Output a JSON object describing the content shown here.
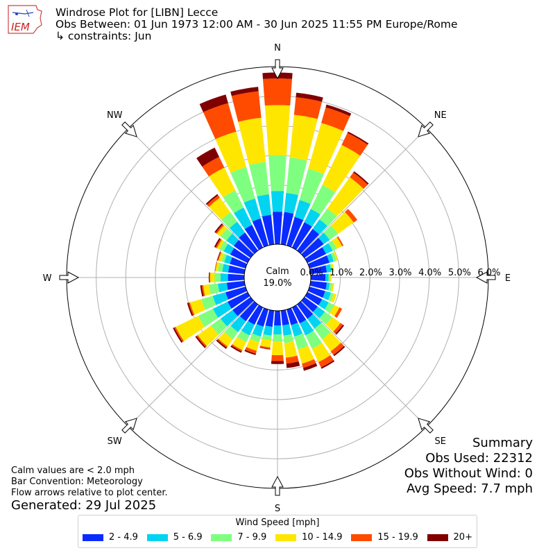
{
  "header": {
    "logo_text": "IEM",
    "title": "Windrose Plot for [LIBN] Lecce",
    "subtitle": "Obs Between: 01 Jun 1973 12:00 AM - 30 Jun 2025 11:55 PM Europe/Rome",
    "constraints": "↳ constraints: Jun"
  },
  "summary": {
    "heading": "Summary",
    "obs_used": "Obs Used: 22312",
    "obs_without_wind": "Obs Without Wind: 0",
    "avg_speed": "Avg Speed: 7.7 mph"
  },
  "notes": {
    "calm_note": "Calm values are < 2.0 mph",
    "bar_convention": "Bar Convention: Meteorology",
    "flow_note": "Flow arrows relative to plot center.",
    "generated": "Generated: 29 Jul 2025"
  },
  "chart_data": {
    "type": "windrose",
    "calm_label": "Calm",
    "calm_value": "19.0%",
    "radial_ticks": [
      "0.0%",
      "1.0%",
      "2.0%",
      "3.0%",
      "4.0%",
      "5.0%",
      "6.0%"
    ],
    "radial_range": [
      0,
      6.0
    ],
    "compass_labels": [
      "N",
      "NE",
      "E",
      "SE",
      "S",
      "SW",
      "W",
      "NW"
    ],
    "legend_title": "Wind Speed [mph]",
    "bins": [
      {
        "label": "2 - 4.9",
        "color": "#0a2bff"
      },
      {
        "label": "5 - 6.9",
        "color": "#00d4f0"
      },
      {
        "label": "7 - 9.9",
        "color": "#7fff7f"
      },
      {
        "label": "10 - 14.9",
        "color": "#ffe600"
      },
      {
        "label": "15 - 19.9",
        "color": "#ff4b00"
      },
      {
        "label": "20+",
        "color": "#800000"
      }
    ],
    "sectors_deg": [
      0,
      10,
      20,
      30,
      40,
      50,
      60,
      70,
      80,
      90,
      100,
      110,
      120,
      130,
      140,
      150,
      160,
      170,
      180,
      190,
      200,
      210,
      220,
      230,
      240,
      250,
      260,
      270,
      280,
      290,
      300,
      310,
      320,
      330,
      340,
      350
    ],
    "cumulative_pct": [
      [
        1.1,
        1.8,
        3.0,
        4.7,
        5.6,
        5.8
      ],
      [
        1.1,
        1.75,
        2.95,
        4.4,
        5.0,
        5.15
      ],
      [
        1.0,
        1.6,
        2.7,
        4.3,
        4.85,
        4.95
      ],
      [
        0.95,
        1.45,
        2.35,
        3.85,
        4.3,
        4.35
      ],
      [
        0.9,
        1.3,
        1.75,
        3.05,
        3.25,
        3.3
      ],
      [
        0.8,
        1.05,
        1.4,
        2.05,
        2.2,
        2.2
      ],
      [
        0.7,
        0.95,
        1.1,
        1.3,
        1.35,
        1.35
      ],
      [
        0.7,
        0.85,
        0.95,
        1.0,
        1.0,
        1.0
      ],
      [
        0.55,
        0.7,
        0.75,
        0.8,
        0.8,
        0.8
      ],
      [
        0.5,
        0.6,
        0.65,
        0.7,
        0.7,
        0.7
      ],
      [
        0.55,
        0.65,
        0.75,
        0.8,
        0.8,
        0.8
      ],
      [
        0.55,
        0.75,
        0.85,
        0.95,
        0.95,
        0.95
      ],
      [
        0.55,
        0.8,
        1.0,
        1.2,
        1.3,
        1.3
      ],
      [
        0.55,
        0.85,
        1.15,
        1.5,
        1.6,
        1.65
      ],
      [
        0.6,
        1.0,
        1.45,
        1.95,
        2.1,
        2.15
      ],
      [
        0.6,
        1.05,
        1.55,
        2.05,
        2.25,
        2.3
      ],
      [
        0.55,
        0.95,
        1.4,
        1.9,
        2.05,
        2.15
      ],
      [
        0.5,
        0.85,
        1.1,
        1.6,
        1.8,
        1.95
      ],
      [
        0.5,
        0.8,
        1.05,
        1.5,
        1.7,
        1.8
      ],
      [
        0.55,
        0.85,
        1.0,
        1.25,
        1.3,
        1.32
      ],
      [
        0.6,
        0.95,
        1.15,
        1.45,
        1.55,
        1.6
      ],
      [
        0.65,
        1.05,
        1.3,
        1.6,
        1.65,
        1.7
      ],
      [
        0.7,
        1.15,
        1.45,
        1.75,
        1.8,
        1.85
      ],
      [
        0.75,
        1.25,
        1.65,
        2.2,
        2.25,
        2.3
      ],
      [
        0.75,
        1.3,
        1.85,
        2.7,
        2.75,
        2.8
      ],
      [
        0.7,
        1.15,
        1.55,
        1.95,
        2.0,
        2.05
      ],
      [
        0.6,
        0.9,
        1.2,
        1.4,
        1.45,
        1.5
      ],
      [
        0.55,
        0.8,
        1.0,
        1.15,
        1.18,
        1.2
      ],
      [
        0.55,
        0.75,
        0.9,
        0.98,
        1.0,
        1.0
      ],
      [
        0.55,
        0.75,
        0.85,
        0.95,
        0.98,
        1.0
      ],
      [
        0.65,
        0.9,
        1.05,
        1.15,
        1.2,
        1.25
      ],
      [
        0.7,
        1.0,
        1.25,
        1.4,
        1.45,
        1.5
      ],
      [
        0.75,
        1.2,
        1.6,
        2.2,
        2.3,
        2.35
      ],
      [
        0.85,
        1.5,
        2.15,
        3.0,
        3.4,
        3.75
      ],
      [
        0.95,
        1.65,
        2.75,
        4.0,
        5.0,
        5.3
      ],
      [
        1.0,
        1.7,
        2.8,
        4.3,
        5.2,
        5.35
      ]
    ]
  }
}
